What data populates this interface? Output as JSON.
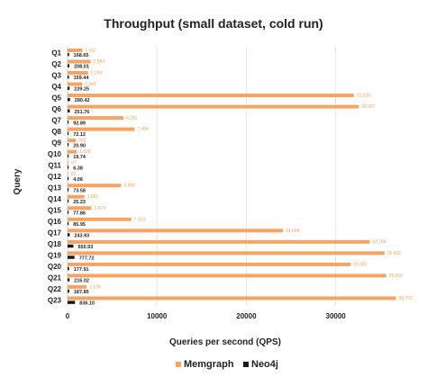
{
  "chart_data": {
    "type": "bar",
    "orientation": "horizontal",
    "title": "Throughput (small dataset, cold run)",
    "xlabel": "Queries per second (QPS)",
    "ylabel": "Query",
    "xlim": [
      0,
      38000
    ],
    "xticks": [
      0,
      10000,
      20000,
      30000
    ],
    "xtick_labels": [
      "0",
      "10000",
      "20000",
      "30000"
    ],
    "grid": true,
    "legend_position": "bottom",
    "categories": [
      "Q1",
      "Q2",
      "Q3",
      "Q4",
      "Q5",
      "Q6",
      "Q7",
      "Q8",
      "Q9",
      "Q10",
      "Q11",
      "Q12",
      "Q13",
      "Q14",
      "Q15",
      "Q16",
      "Q17",
      "Q18",
      "Q19",
      "Q20",
      "Q21",
      "Q22",
      "Q23"
    ],
    "series": [
      {
        "name": "Memgraph",
        "color": "#f7a463",
        "values": [
          1642,
          2584,
          2284,
          1643,
          32028,
          32587,
          6241,
          7484,
          928,
          1028,
          97,
          62,
          5996,
          1881,
          2674,
          7124,
          24094,
          33794,
          35465,
          31681,
          35650,
          2138,
          36750
        ],
        "value_labels": [
          "1,642",
          "2,584",
          "2,284",
          "1,643",
          "32,028",
          "32,587",
          "6,241",
          "7,484",
          "928",
          "1,028",
          "97",
          "62",
          "5,996",
          "1,881",
          "2,674",
          "7,124",
          "24,094",
          "33,794",
          "35,465",
          "31,681",
          "35,650",
          "2,138",
          "36,750"
        ]
      },
      {
        "name": "Neo4j",
        "color": "#1a1a1a",
        "values": [
          168.65,
          208.01,
          159.44,
          229.25,
          280.42,
          251.76,
          92.89,
          72.12,
          20.9,
          19.74,
          6.38,
          4.06,
          73.58,
          25.23,
          77.86,
          85.95,
          243.93,
          650.93,
          777.72,
          177.91,
          216.02,
          187.85,
          836.1
        ],
        "value_labels": [
          "168.65",
          "208.01",
          "159.44",
          "229.25",
          "280.42",
          "251.76",
          "92.89",
          "72.12",
          "20.90",
          "19.74",
          "6.38",
          "4.06",
          "73.58",
          "25.23",
          "77.86",
          "85.95",
          "243.93",
          "650.93",
          "777.72",
          "177.91",
          "216.02",
          "187.85",
          "836.10"
        ]
      }
    ]
  }
}
